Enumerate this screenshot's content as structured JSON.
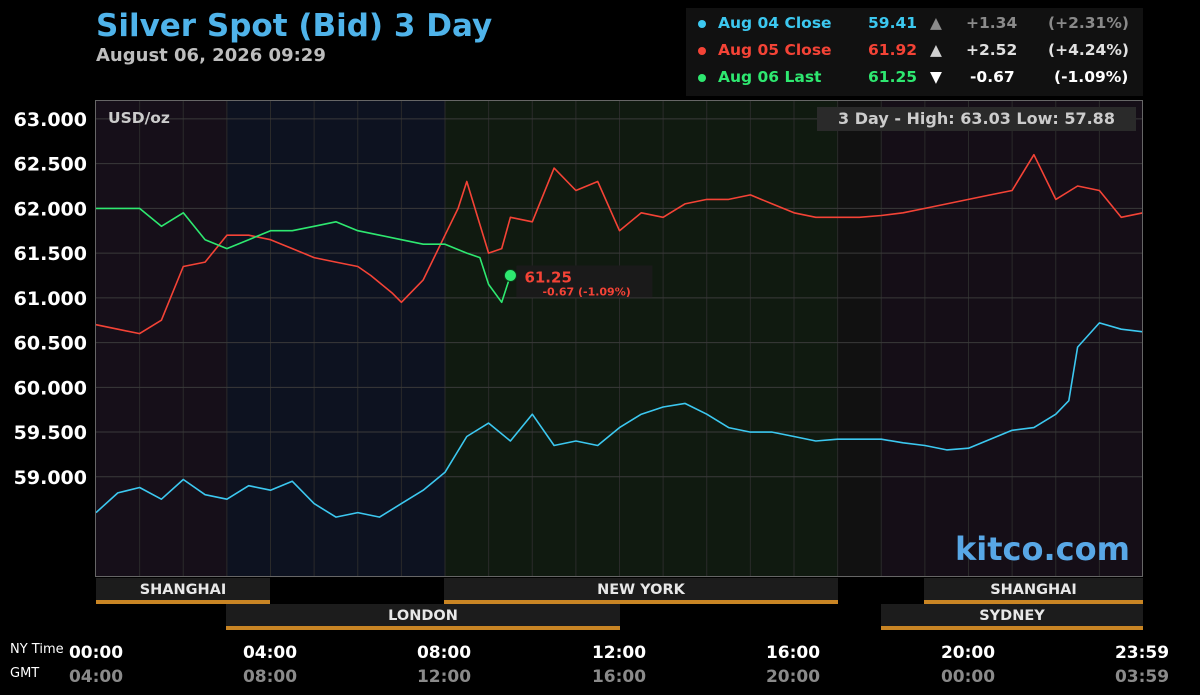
{
  "title": "Silver Spot (Bid) 3 Day",
  "subtitle": "August 06, 2026 09:29",
  "legend": [
    {
      "label": "Aug 04 Close",
      "value": "59.41",
      "arrow": "▲",
      "change": "+1.34",
      "pct": "(+2.31%)",
      "color": "#3cc8f0",
      "txt_color": "#3cc8f0",
      "arrow_color": "#8a8a8a",
      "chg_color": "#8a8a8a"
    },
    {
      "label": "Aug 05 Close",
      "value": "61.92",
      "arrow": "▲",
      "change": "+2.52",
      "pct": "(+4.24%)",
      "color": "#f44336",
      "txt_color": "#f44336",
      "arrow_color": "#cfcfcf",
      "chg_color": "#e0e0e0"
    },
    {
      "label": "Aug 06 Last",
      "value": "61.25",
      "arrow": "▼",
      "change": "-0.67",
      "pct": "(-1.09%)",
      "color": "#2ee870",
      "txt_color": "#2ee870",
      "arrow_color": "#ffffff",
      "chg_color": "#ffffff"
    }
  ],
  "unit_label": "USD/oz",
  "hilo": "3 Day - High: 63.03  Low: 57.88",
  "brand": "kitco.com",
  "time_row_labels": {
    "ny": "NY Time",
    "gmt": "GMT"
  },
  "x_ticks_ny": [
    "00:00",
    "04:00",
    "08:00",
    "12:00",
    "16:00",
    "20:00",
    "23:59"
  ],
  "x_ticks_gmt": [
    "04:00",
    "08:00",
    "12:00",
    "16:00",
    "20:00",
    "00:00",
    "03:59"
  ],
  "markets_top": [
    "SHANGHAI",
    "NEW YORK",
    "SHANGHAI"
  ],
  "markets_bottom": [
    "LONDON",
    "SYDNEY"
  ],
  "last_callout": {
    "value": "61.25",
    "change": "-0.67 (-1.09%)"
  },
  "chart_data": {
    "type": "line",
    "ylim": [
      57.88,
      63.2
    ],
    "y_ticks": [
      "63.000",
      "62.500",
      "62.000",
      "61.500",
      "61.000",
      "60.500",
      "60.000",
      "59.500",
      "59.000"
    ],
    "x_unit": "hours (NY time)",
    "xlim": [
      0,
      24
    ],
    "series": [
      {
        "name": "Aug 04 Close",
        "color": "#3cc8f0",
        "x": [
          0,
          0.5,
          1,
          1.5,
          2,
          2.5,
          3,
          3.5,
          4,
          4.5,
          5,
          5.5,
          6,
          6.5,
          7,
          7.5,
          8,
          8.5,
          9,
          9.5,
          10,
          10.5,
          11,
          11.5,
          12,
          12.5,
          13,
          13.5,
          14,
          14.5,
          15,
          15.5,
          16,
          16.5,
          17,
          17.5,
          18,
          18.5,
          19,
          19.5,
          20,
          20.5,
          21,
          21.5,
          22,
          22.3,
          22.5,
          23,
          23.5,
          24
        ],
        "y": [
          58.6,
          58.82,
          58.88,
          58.75,
          58.97,
          58.8,
          58.75,
          58.9,
          58.85,
          58.95,
          58.7,
          58.55,
          58.6,
          58.55,
          58.7,
          58.85,
          59.05,
          59.45,
          59.6,
          59.4,
          59.7,
          59.35,
          59.4,
          59.35,
          59.55,
          59.7,
          59.78,
          59.82,
          59.7,
          59.55,
          59.5,
          59.5,
          59.45,
          59.4,
          59.42,
          59.42,
          59.42,
          59.38,
          59.35,
          59.3,
          59.32,
          59.42,
          59.52,
          59.55,
          59.7,
          59.85,
          60.45,
          60.72,
          60.65,
          60.62
        ]
      },
      {
        "name": "Aug 05 Close",
        "color": "#f44336",
        "x": [
          0,
          0.5,
          1,
          1.5,
          2,
          2.5,
          3,
          3.5,
          4,
          4.5,
          5,
          5.5,
          6,
          6.3,
          6.8,
          7,
          7.5,
          8,
          8.3,
          8.5,
          9,
          9.3,
          9.5,
          10,
          10.5,
          11,
          11.5,
          12,
          12.5,
          13,
          13.5,
          14,
          14.5,
          15,
          15.5,
          16,
          16.5,
          17,
          17.5,
          18,
          18.5,
          19,
          19.5,
          20,
          20.5,
          21,
          21.5,
          22,
          22.5,
          23,
          23.5,
          24
        ],
        "y": [
          60.7,
          60.65,
          60.6,
          60.75,
          61.35,
          61.4,
          61.7,
          61.7,
          61.65,
          61.55,
          61.45,
          61.4,
          61.35,
          61.25,
          61.05,
          60.95,
          61.2,
          61.7,
          62.0,
          62.3,
          61.5,
          61.55,
          61.9,
          61.85,
          62.45,
          62.2,
          62.3,
          61.75,
          61.95,
          61.9,
          62.05,
          62.1,
          62.1,
          62.15,
          62.05,
          61.95,
          61.9,
          61.9,
          61.9,
          61.92,
          61.95,
          62.0,
          62.05,
          62.1,
          62.15,
          62.2,
          62.6,
          62.1,
          62.25,
          62.2,
          61.9,
          61.95
        ]
      },
      {
        "name": "Aug 06 Last",
        "color": "#2ee870",
        "x": [
          0,
          0.5,
          1,
          1.5,
          2,
          2.5,
          3,
          3.5,
          4,
          4.5,
          5,
          5.5,
          6,
          6.5,
          7,
          7.5,
          8,
          8.5,
          8.8,
          9,
          9.3,
          9.5
        ],
        "y": [
          62.0,
          62.0,
          62.0,
          61.8,
          61.95,
          61.65,
          61.55,
          61.65,
          61.75,
          61.75,
          61.8,
          61.85,
          61.75,
          61.7,
          61.65,
          61.6,
          61.6,
          61.5,
          61.45,
          61.15,
          60.95,
          61.25
        ]
      }
    ]
  }
}
